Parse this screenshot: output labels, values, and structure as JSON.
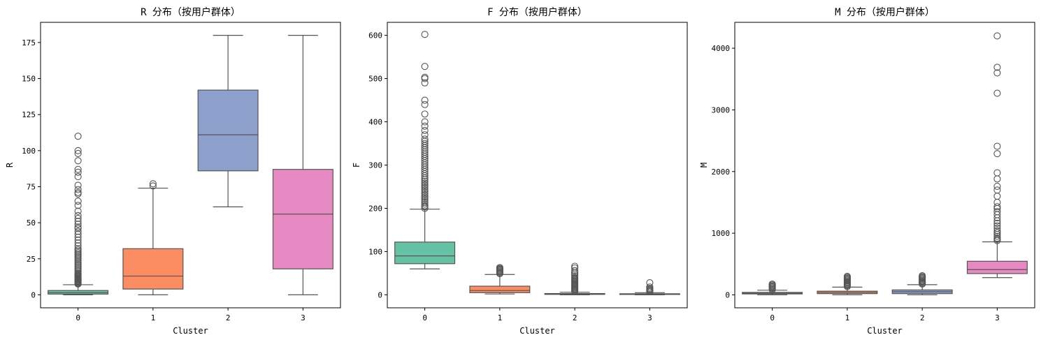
{
  "chart_data": [
    {
      "type": "box",
      "title": "R 分布（按用户群体）",
      "xlabel": "Cluster",
      "ylabel": "R",
      "categories": [
        "0",
        "1",
        "2",
        "3"
      ],
      "colors": [
        "#66c2a5",
        "#fc8d62",
        "#8da0cb",
        "#e78ac3"
      ],
      "ylim": [
        -9,
        189
      ],
      "yticks": [
        0,
        25,
        50,
        75,
        100,
        125,
        150,
        175
      ],
      "boxes": [
        {
          "whislo": 0,
          "q1": 0.5,
          "med": 1.5,
          "q3": 3,
          "whishi": 7,
          "fliers": [
            7.5,
            8,
            8.5,
            9,
            9.5,
            10,
            10.5,
            11,
            11.5,
            12,
            12.5,
            13,
            13.5,
            14,
            14.5,
            15,
            16,
            17,
            18,
            19,
            20,
            21,
            22,
            23,
            24,
            25,
            26,
            27,
            28,
            29,
            30,
            31,
            32,
            34,
            36,
            38,
            40,
            42,
            44,
            46,
            47,
            49,
            51,
            53,
            55,
            58,
            62,
            65,
            70,
            71,
            73,
            76,
            82,
            85,
            87,
            93,
            98,
            100,
            110
          ]
        },
        {
          "whislo": 0,
          "q1": 4,
          "med": 13,
          "q3": 32,
          "whishi": 74,
          "fliers": [
            75.5,
            77
          ]
        },
        {
          "whislo": 61,
          "q1": 86,
          "med": 111,
          "q3": 142,
          "whishi": 180,
          "fliers": []
        },
        {
          "whislo": 0,
          "q1": 18,
          "med": 56,
          "q3": 87,
          "whishi": 180,
          "fliers": []
        }
      ]
    },
    {
      "type": "box",
      "title": "F 分布（按用户群体）",
      "xlabel": "Cluster",
      "ylabel": "F",
      "categories": [
        "0",
        "1",
        "2",
        "3"
      ],
      "colors": [
        "#66c2a5",
        "#fc8d62",
        "#8da0cb",
        "#e78ac3"
      ],
      "ylim": [
        -30,
        630
      ],
      "yticks": [
        0,
        100,
        200,
        300,
        400,
        500,
        600
      ],
      "boxes": [
        {
          "whislo": 60,
          "q1": 72,
          "med": 90,
          "q3": 122,
          "whishi": 198,
          "fliers": [
            200,
            203,
            206,
            210,
            214,
            218,
            222,
            226,
            230,
            234,
            238,
            242,
            246,
            250,
            254,
            258,
            262,
            266,
            270,
            275,
            280,
            285,
            290,
            295,
            300,
            305,
            310,
            315,
            320,
            325,
            330,
            335,
            340,
            345,
            350,
            355,
            360,
            370,
            380,
            390,
            400,
            418,
            440,
            450,
            490,
            500,
            503,
            528,
            602
          ]
        },
        {
          "whislo": 2,
          "q1": 5,
          "med": 10,
          "q3": 20,
          "whishi": 47,
          "fliers": [
            49,
            51,
            53,
            55,
            57,
            59,
            61,
            63
          ]
        },
        {
          "whislo": 0,
          "q1": 1,
          "med": 2,
          "q3": 3,
          "whishi": 6,
          "fliers": [
            8,
            10,
            12,
            14,
            16,
            18,
            20,
            22,
            24,
            26,
            28,
            30,
            32,
            34,
            36,
            38,
            40,
            44,
            48,
            52,
            56,
            62,
            66
          ]
        },
        {
          "whislo": 0,
          "q1": 1,
          "med": 1.5,
          "q3": 2.5,
          "whishi": 5,
          "fliers": [
            7,
            9,
            11,
            13,
            15,
            18,
            28
          ]
        }
      ]
    },
    {
      "type": "box",
      "title": "M 分布（按用户群体）",
      "xlabel": "Cluster",
      "ylabel": "M",
      "categories": [
        "0",
        "1",
        "2",
        "3"
      ],
      "colors": [
        "#66c2a5",
        "#fc8d62",
        "#8da0cb",
        "#e78ac3"
      ],
      "ylim": [
        -210,
        4420
      ],
      "yticks": [
        0,
        1000,
        2000,
        3000,
        4000
      ],
      "boxes": [
        {
          "whislo": 0,
          "q1": 15,
          "med": 25,
          "q3": 40,
          "whishi": 75,
          "fliers": [
            85,
            100,
            115,
            130,
            145,
            160,
            175
          ]
        },
        {
          "whislo": 0,
          "q1": 20,
          "med": 40,
          "q3": 60,
          "whishi": 125,
          "fliers": [
            135,
            150,
            165,
            180,
            195,
            210,
            225,
            240,
            255,
            270,
            285,
            300
          ]
        },
        {
          "whislo": 0,
          "q1": 20,
          "med": 50,
          "q3": 80,
          "whishi": 165,
          "fliers": [
            175,
            190,
            205,
            220,
            235,
            250,
            265,
            280,
            295,
            310
          ]
        },
        {
          "whislo": 280,
          "q1": 345,
          "med": 410,
          "q3": 545,
          "whishi": 860,
          "fliers": [
            880,
            900,
            920,
            950,
            980,
            1010,
            1040,
            1080,
            1120,
            1160,
            1200,
            1250,
            1300,
            1350,
            1400,
            1430,
            1500,
            1600,
            1700,
            1760,
            1880,
            1980,
            2290,
            2410,
            3270,
            3600,
            3690,
            4200
          ]
        }
      ]
    }
  ]
}
